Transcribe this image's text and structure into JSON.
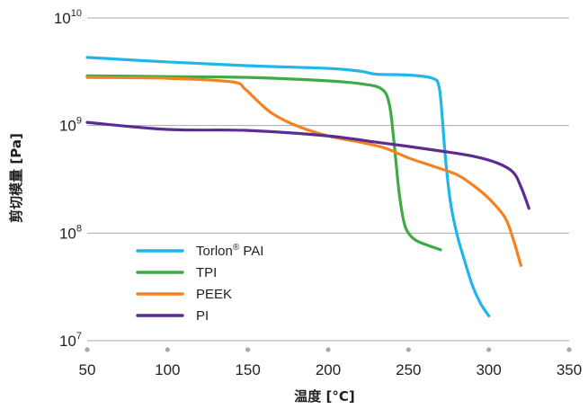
{
  "chart_data": {
    "type": "line",
    "title": "",
    "xlabel": "温度 [°C]",
    "ylabel": "剪切模量 [Pa]",
    "xlim": [
      50,
      350
    ],
    "ylim": [
      10000000,
      10000000000
    ],
    "yscale": "log",
    "grid": "horizontal",
    "legend_position": "bottom-left",
    "x_ticks": [
      "50",
      "100",
      "150",
      "200",
      "250",
      "300",
      "350"
    ],
    "y_ticks": [
      {
        "base": "10",
        "exp": "7",
        "value": 10000000
      },
      {
        "base": "10",
        "exp": "8",
        "value": 100000000
      },
      {
        "base": "10",
        "exp": "9",
        "value": 1000000000
      },
      {
        "base": "10",
        "exp": "10",
        "value": 10000000000
      }
    ],
    "series": [
      {
        "name": "Torlon",
        "name_sup": "®",
        "name_suffix": " PAI",
        "color": "#1fb6ea",
        "x": [
          50,
          100,
          150,
          200,
          220,
          230,
          250,
          265,
          269,
          271,
          273,
          276,
          280,
          285,
          290,
          295,
          300
        ],
        "y": [
          4300000000,
          3900000000,
          3600000000,
          3400000000,
          3200000000,
          3000000000,
          2950000000,
          2750000000,
          2300000000,
          1200000000,
          500000000,
          200000000,
          100000000,
          55000000,
          32000000,
          22000000,
          17000000
        ]
      },
      {
        "name": "TPI",
        "name_sup": "",
        "name_suffix": "",
        "color": "#3faa48",
        "x": [
          50,
          100,
          150,
          200,
          220,
          233,
          238,
          241,
          244,
          247,
          250,
          255,
          262,
          270
        ],
        "y": [
          2900000000,
          2850000000,
          2800000000,
          2600000000,
          2450000000,
          2200000000,
          1600000000,
          700000000,
          250000000,
          130000000,
          100000000,
          85000000,
          77000000,
          70000000
        ]
      },
      {
        "name": "PEEK",
        "name_sup": "",
        "name_suffix": "",
        "color": "#f58220",
        "x": [
          50,
          100,
          140,
          148,
          155,
          165,
          180,
          200,
          220,
          235,
          250,
          265,
          280,
          290,
          300,
          310,
          315,
          320
        ],
        "y": [
          2800000000,
          2750000000,
          2550000000,
          2200000000,
          1750000000,
          1300000000,
          1000000000,
          800000000,
          700000000,
          620000000,
          500000000,
          420000000,
          350000000,
          280000000,
          210000000,
          140000000,
          90000000,
          50000000
        ]
      },
      {
        "name": "PI",
        "name_sup": "",
        "name_suffix": "",
        "color": "#5c2d91",
        "x": [
          50,
          100,
          150,
          200,
          230,
          250,
          270,
          290,
          305,
          315,
          320,
          325
        ],
        "y": [
          1070000000,
          920000000,
          900000000,
          800000000,
          700000000,
          640000000,
          580000000,
          520000000,
          450000000,
          370000000,
          270000000,
          170000000
        ]
      }
    ]
  }
}
